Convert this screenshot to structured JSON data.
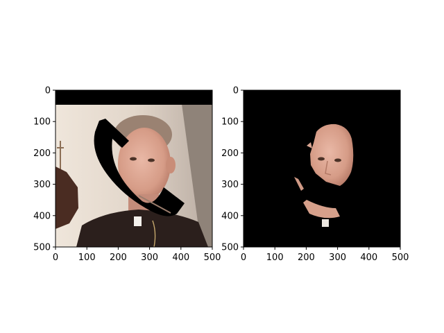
{
  "figure": {
    "background": "#ffffff"
  },
  "chart_data": [
    {
      "type": "image",
      "title": "",
      "xlabel": "",
      "ylabel": "",
      "xlim": [
        0,
        500
      ],
      "ylim": [
        500,
        0
      ],
      "xticks": [
        0,
        100,
        200,
        300,
        400,
        500
      ],
      "yticks": [
        0,
        100,
        200,
        300,
        400,
        500
      ],
      "grid": false,
      "content": "photo"
    },
    {
      "type": "image",
      "title": "",
      "xlabel": "",
      "ylabel": "",
      "xlim": [
        0,
        500
      ],
      "ylim": [
        500,
        0
      ],
      "xticks": [
        0,
        100,
        200,
        300,
        400,
        500
      ],
      "yticks": [
        0,
        100,
        200,
        300,
        400,
        500
      ],
      "grid": false,
      "content": "mask"
    }
  ]
}
